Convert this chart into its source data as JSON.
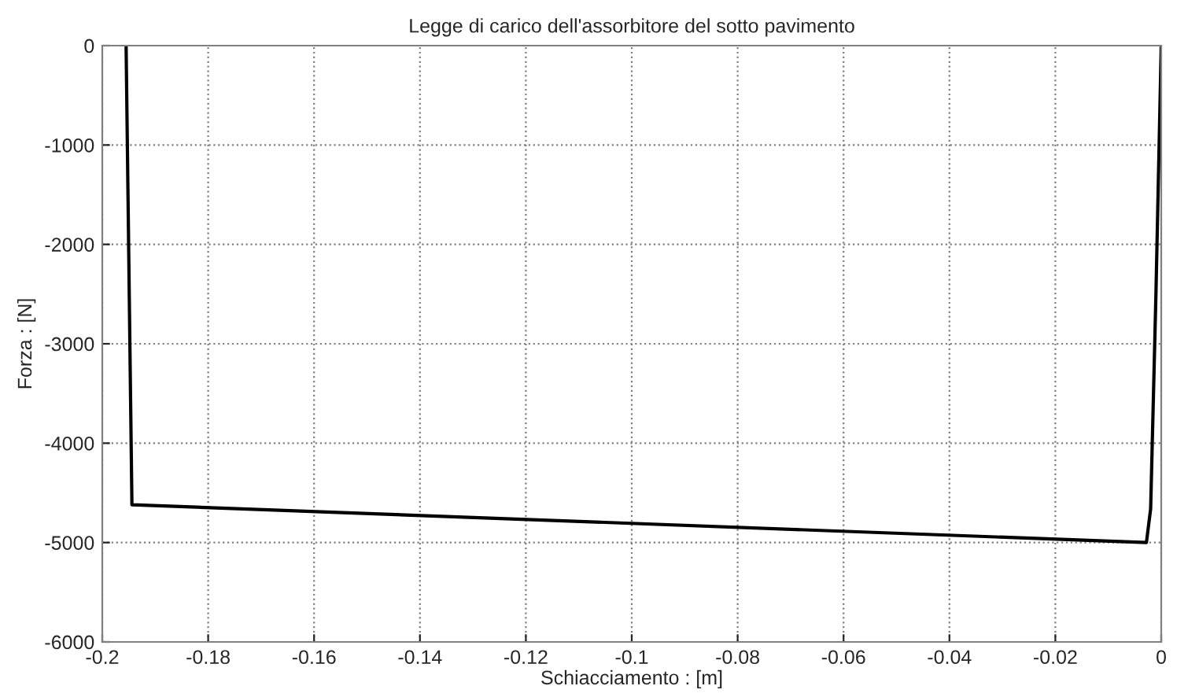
{
  "chart_data": {
    "type": "line",
    "title": "Legge di carico dell'assorbitore del sotto pavimento",
    "xlabel": "Schiacciamento : [m]",
    "ylabel": "Forza : [N]",
    "series": [
      {
        "color": "#000000",
        "x": [
          0,
          -0.001,
          -0.002,
          -0.0028,
          -0.1944,
          -0.1955
        ],
        "values": [
          0,
          -2500,
          -4660,
          -5000,
          -4620,
          0
        ]
      }
    ],
    "xlim": [
      -0.2,
      0
    ],
    "ylim": [
      -6000,
      0
    ],
    "xticks": [
      -0.2,
      -0.18,
      -0.16,
      -0.14,
      -0.12,
      -0.1,
      -0.08,
      -0.06,
      -0.04,
      -0.02,
      0
    ],
    "yticks": [
      -6000,
      -5000,
      -4000,
      -3000,
      -2000,
      -1000,
      0
    ],
    "grid": true,
    "marker": "none",
    "line_style": "solid"
  }
}
